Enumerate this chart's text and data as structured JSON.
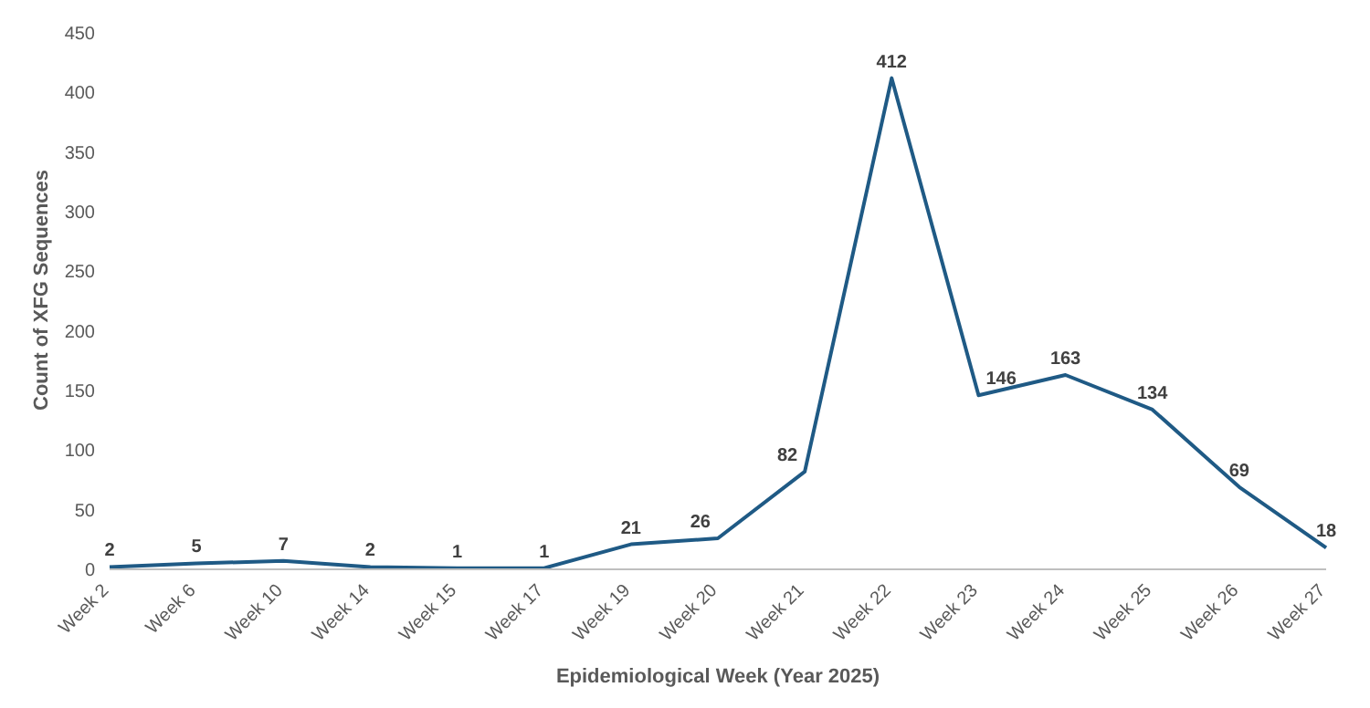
{
  "chart_data": {
    "type": "line",
    "xlabel": "Epidemiological Week (Year 2025)",
    "ylabel": "Count of XFG Sequences",
    "categories": [
      "Week 2",
      "Week 6",
      "Week 10",
      "Week 14",
      "Week 15",
      "Week 17",
      "Week 19",
      "Week 20",
      "Week 21",
      "Week 22",
      "Week 23",
      "Week 24",
      "Week 25",
      "Week 26",
      "Week 27"
    ],
    "series": [
      {
        "color": "#1f5a85",
        "values": [
          2,
          5,
          7,
          2,
          1,
          1,
          21,
          26,
          82,
          412,
          146,
          163,
          134,
          69,
          18
        ]
      }
    ],
    "ylim": [
      0,
      450
    ],
    "yticks": [
      0,
      50,
      100,
      150,
      200,
      250,
      300,
      350,
      400,
      450
    ],
    "grid": false,
    "legend": false,
    "marker": "none",
    "line_style": "solid",
    "data_labels": true
  }
}
